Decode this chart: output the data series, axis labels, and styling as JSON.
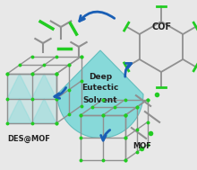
{
  "bg_color": "#e8e8e8",
  "droplet_color": "#7dd8d8",
  "droplet_edge": "#5bbaba",
  "center_text": [
    "Deep",
    "Eutectic",
    "Solvent"
  ],
  "arrow_color": "#1a5fb5",
  "node_color": "#22cc22",
  "edge_color": "#909090",
  "cof_color": "#909090",
  "cof_node_color": "#22cc22",
  "label_des_mof": "DES@MOF",
  "label_mof": "MOF",
  "label_cof": "COF",
  "text_color": "#222222",
  "font_size": 6.5,
  "label_font_size": 6.0
}
